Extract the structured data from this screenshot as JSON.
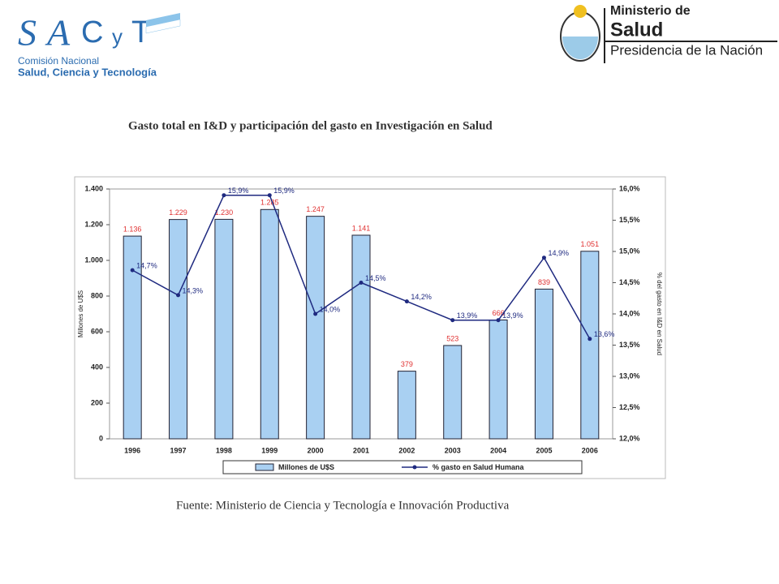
{
  "logo_left": {
    "letters": [
      "S",
      "A",
      "C",
      "y",
      "T"
    ],
    "line1": "Comisión Nacional",
    "line2": "Salud, Ciencia y Tecnología"
  },
  "logo_right": {
    "line1": "Ministerio de",
    "line2": "Salud",
    "line3": "Presidencia de la Nación"
  },
  "chart_data": {
    "type": "bar_line",
    "title": "Gasto total en I&D y participación del gasto en Investigación en Salud",
    "ylabel": "Millones de U$S",
    "y2label": "% del gasto en I&D en Salud",
    "source": "Fuente: Ministerio de Ciencia y Tecnología e Innovación Productiva",
    "categories": [
      "1996",
      "1997",
      "1998",
      "1999",
      "2000",
      "2001",
      "2002",
      "2003",
      "2004",
      "2005",
      "2006"
    ],
    "series": [
      {
        "name": "Millones de U$S",
        "color": "#a9d0f2",
        "type": "bar",
        "values": [
          1136,
          1229,
          1230,
          1285,
          1247,
          1141,
          379,
          523,
          666,
          839,
          1051
        ],
        "value_labels": [
          "1.136",
          "1.229",
          "1.230",
          "1.285",
          "1.247",
          "1.141",
          "379",
          "523",
          "666",
          "839",
          "1.051"
        ]
      },
      {
        "name": "% gasto en Salud Humana",
        "color": "#1f2a80",
        "type": "line",
        "axis": "y2",
        "values": [
          14.7,
          14.3,
          15.9,
          15.9,
          14.0,
          14.5,
          14.2,
          13.9,
          13.9,
          14.9,
          13.6
        ],
        "value_labels": [
          "14,7%",
          "14,3%",
          "15,9%",
          "15,9%",
          "14,0%",
          "14,5%",
          "14,2%",
          "13,9%",
          "13,9%",
          "14,9%",
          "13,6%"
        ]
      }
    ],
    "ylim": [
      0,
      1400
    ],
    "yticks": [
      0,
      200,
      400,
      600,
      800,
      {
        "value": 1000,
        "label": "1.000"
      },
      {
        "value": 1200,
        "label": "1.200"
      },
      {
        "value": 1400,
        "label": "1.400"
      }
    ],
    "y2lim": [
      12.0,
      16.0
    ],
    "y2ticks": [
      {
        "value": 12.0,
        "label": "12,0%"
      },
      {
        "value": 12.5,
        "label": "12,5%"
      },
      {
        "value": 13.0,
        "label": "13,0%"
      },
      {
        "value": 13.5,
        "label": "13,5%"
      },
      {
        "value": 14.0,
        "label": "14,0%"
      },
      {
        "value": 14.5,
        "label": "14,5%"
      },
      {
        "value": 15.0,
        "label": "15,0%"
      },
      {
        "value": 15.5,
        "label": "15,5%"
      },
      {
        "value": 16.0,
        "label": "16,0%"
      }
    ],
    "bar_label_color": "#e03030",
    "line_label_color": "#1f2a80"
  }
}
